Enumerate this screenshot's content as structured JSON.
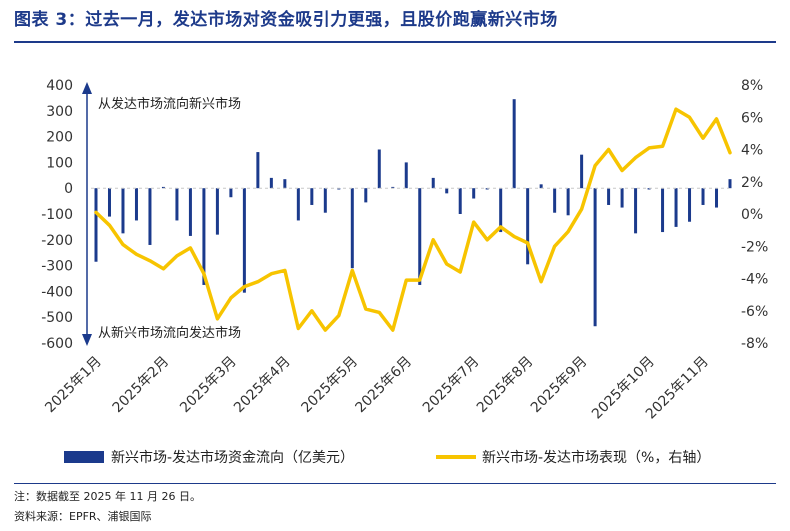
{
  "header": {
    "title": "图表 3：过去一月，发达市场对资金吸引力更强，且股价跑赢新兴市场"
  },
  "footer": {
    "note": "注：数据截至 2025 年 11 月 26 日。",
    "source": "资料来源：EPFR、浦银国际"
  },
  "chart_data": {
    "type": "bar+line",
    "x_labels": [
      "2025年1月",
      "2025年2月",
      "2025年3月",
      "2025年4月",
      "2025年5月",
      "2025年6月",
      "2025年7月",
      "2025年8月",
      "2025年9月",
      "2025年10月",
      "2025年11月"
    ],
    "y_left": {
      "min": -600,
      "max": 400,
      "ticks": [
        400,
        300,
        200,
        100,
        0,
        -100,
        -200,
        -300,
        -400,
        -500,
        -600
      ]
    },
    "y_right": {
      "min": -8,
      "max": 8,
      "ticks": [
        "8%",
        "6%",
        "4%",
        "2%",
        "0%",
        "-2%",
        "-4%",
        "-6%",
        "-8%"
      ],
      "tick_values": [
        8,
        6,
        4,
        2,
        0,
        -2,
        -4,
        -6,
        -8
      ]
    },
    "annotations": {
      "top": "从发达市场流向新兴市场",
      "bottom": "从新兴市场流向发达市场"
    },
    "series": [
      {
        "name": "新兴市场-发达市场资金流向（亿美元）",
        "kind": "bar",
        "axis": "left",
        "color": "#1b3a8c",
        "values": [
          -285,
          -110,
          -175,
          -125,
          -220,
          5,
          -125,
          -185,
          -375,
          -180,
          -35,
          -405,
          140,
          40,
          35,
          -125,
          -65,
          -95,
          -5,
          -310,
          -55,
          150,
          5,
          100,
          -375,
          40,
          -20,
          -100,
          -40,
          -5,
          -170,
          345,
          -295,
          15,
          -95,
          -105,
          130,
          -535,
          -65,
          -75,
          -175,
          -5,
          -170,
          -150,
          -130,
          -65,
          -75,
          35
        ]
      },
      {
        "name": "新兴市场-发达市场表现（%，右轴）",
        "kind": "line",
        "axis": "right",
        "color": "#f7c400",
        "values": [
          0.1,
          -0.7,
          -1.9,
          -2.5,
          -2.9,
          -3.4,
          -2.6,
          -2.1,
          -3.7,
          -6.5,
          -5.2,
          -4.5,
          -4.2,
          -3.7,
          -3.5,
          -7.1,
          -6.0,
          -7.2,
          -6.3,
          -3.5,
          -5.9,
          -6.1,
          -7.2,
          -4.1,
          -4.1,
          -1.6,
          -3.1,
          -3.6,
          -0.5,
          -1.6,
          -0.8,
          -1.4,
          -1.8,
          -4.2,
          -2.0,
          -1.1,
          0.3,
          3.0,
          4.0,
          2.7,
          3.5,
          4.1,
          4.2,
          6.5,
          6.0,
          4.7,
          5.9,
          3.8
        ]
      }
    ]
  }
}
